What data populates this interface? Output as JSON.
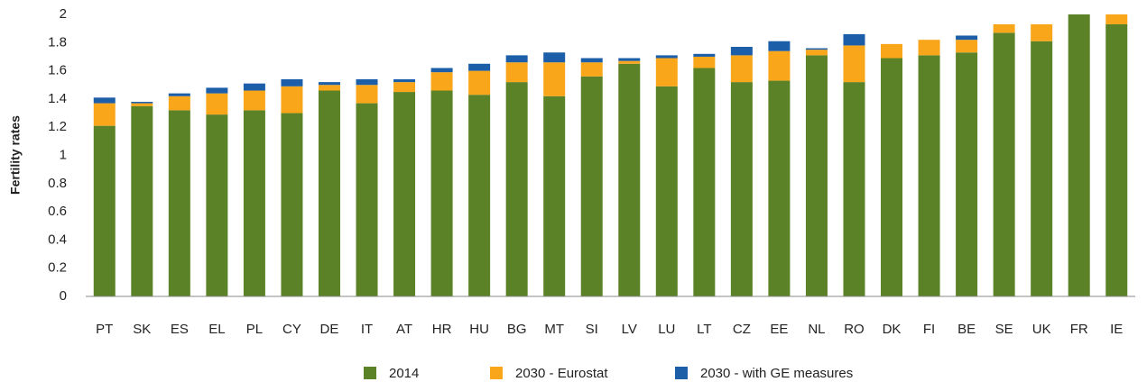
{
  "chart_data": {
    "type": "stacked_bar",
    "y_label": "Fertility rates",
    "categories": [
      "PT",
      "SK",
      "ES",
      "EL",
      "PL",
      "CY",
      "DE",
      "IT",
      "AT",
      "HR",
      "HU",
      "BG",
      "MT",
      "SI",
      "LV",
      "LU",
      "LT",
      "CZ",
      "EE",
      "NL",
      "RO",
      "DK",
      "FI",
      "BE",
      "SE",
      "UK",
      "FR",
      "IE"
    ],
    "series": [
      {
        "name": "2014",
        "color": "#5b8226",
        "values": [
          1.21,
          1.35,
          1.32,
          1.29,
          1.32,
          1.3,
          1.46,
          1.37,
          1.45,
          1.46,
          1.43,
          1.52,
          1.42,
          1.56,
          1.65,
          1.49,
          1.62,
          1.52,
          1.53,
          1.71,
          1.52,
          1.69,
          1.71,
          1.73,
          1.87,
          1.81,
          2.0,
          1.93
        ]
      },
      {
        "name": "2030 - Eurostat",
        "color": "#f9a61a",
        "values": [
          0.16,
          0.02,
          0.1,
          0.15,
          0.14,
          0.19,
          0.04,
          0.13,
          0.07,
          0.13,
          0.17,
          0.14,
          0.24,
          0.1,
          0.02,
          0.2,
          0.08,
          0.19,
          0.21,
          0.04,
          0.26,
          0.1,
          0.11,
          0.09,
          0.06,
          0.12,
          0,
          0.07
        ]
      },
      {
        "name": "2030 - with GE measures",
        "color": "#1c5fa8",
        "values": [
          0.04,
          0.01,
          0.02,
          0.04,
          0.05,
          0.05,
          0.02,
          0.04,
          0.02,
          0.03,
          0.05,
          0.05,
          0.07,
          0.03,
          0.02,
          0.02,
          0.02,
          0.06,
          0.07,
          0.01,
          0.08,
          0,
          0,
          0.03,
          0,
          0,
          0,
          0
        ]
      }
    ],
    "ylim": [
      0,
      2
    ],
    "yticks": [
      0,
      0.2,
      0.4,
      0.6,
      0.8,
      1,
      1.2,
      1.4,
      1.6,
      1.8,
      2
    ],
    "legend": "bottom"
  }
}
